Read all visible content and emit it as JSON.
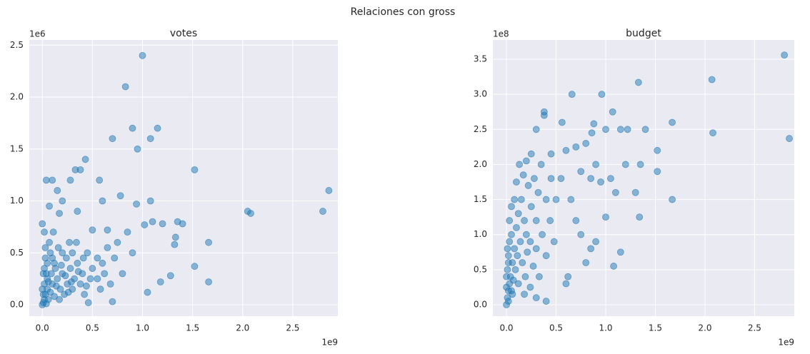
{
  "title": "Relaciones con gross",
  "chart_data": [
    {
      "type": "scatter",
      "title": "votes",
      "x_offset_label": "1e9",
      "y_offset_label": "1e6",
      "color": "#1f77b4",
      "grid": true,
      "xlim": [
        -0.13,
        2.95
      ],
      "ylim": [
        -0.11,
        2.55
      ],
      "xticks": [
        {
          "value": 0,
          "label": "0.0"
        },
        0.5,
        {
          "value": 1,
          "label": "1.0"
        },
        1.5,
        {
          "value": 2,
          "label": "2.0"
        },
        2.5
      ],
      "yticks": [
        {
          "value": 0,
          "label": "0.0"
        },
        0.5,
        {
          "value": 1,
          "label": "1.0"
        },
        1.5,
        {
          "value": 2,
          "label": "2.0"
        },
        2.5
      ],
      "x": [
        1.0,
        0.83,
        0.9,
        1.15,
        1.08,
        0.7,
        0.95,
        0.43,
        0.33,
        0.38,
        1.52,
        0.28,
        0.04,
        0.1,
        0.57,
        0.15,
        2.86,
        1.08,
        0.78,
        0.2,
        0.07,
        0.6,
        0.94,
        2.05,
        2.08,
        2.8,
        1.35,
        1.4,
        1.2,
        1.1,
        1.02,
        0.35,
        0.17,
        0.5,
        0.65,
        1.66,
        1.33,
        1.32,
        1.52,
        1.66,
        1.28,
        1.18,
        1.05,
        0.7,
        0.46,
        0.85,
        0.75,
        0.9,
        0.8,
        0.6,
        0.55,
        0.01,
        0.02,
        0.03,
        0.05,
        0.02,
        0.04,
        0.06,
        0.08,
        0.1,
        0.12,
        0.15,
        0.18,
        0.2,
        0.22,
        0.25,
        0.28,
        0.3,
        0.32,
        0.35,
        0.38,
        0.4,
        0.42,
        0.45,
        0.48,
        0.05,
        0.08,
        0.1,
        0.13,
        0.16,
        0.2,
        0.24,
        0.27,
        0.03,
        0.07,
        0.11,
        0.3,
        0.34,
        0.05,
        0.14,
        0.17,
        0.09,
        0.01,
        0.02,
        0.04,
        0.06,
        0.12,
        0.19,
        0.23,
        0.26,
        0.29,
        0.36,
        0.41,
        0.44,
        0.5,
        0.55,
        0.62,
        0.68,
        0.72,
        0.58,
        0.65,
        0.0,
        0.01,
        0.03,
        0.0,
        0.02,
        0.0
      ],
      "values": [
        2.4,
        2.1,
        1.7,
        1.7,
        1.6,
        1.6,
        1.5,
        1.4,
        1.3,
        1.3,
        1.3,
        1.2,
        1.2,
        1.2,
        1.2,
        1.1,
        1.1,
        1.0,
        1.05,
        1.0,
        0.95,
        1.0,
        0.97,
        0.9,
        0.88,
        0.9,
        0.8,
        0.78,
        0.78,
        0.8,
        0.77,
        0.9,
        0.88,
        0.72,
        0.72,
        0.6,
        0.65,
        0.58,
        0.37,
        0.22,
        0.28,
        0.22,
        0.12,
        0.03,
        0.02,
        0.7,
        0.6,
        0.5,
        0.3,
        0.4,
        0.25,
        0.02,
        0.05,
        0.1,
        0.15,
        0.2,
        0.3,
        0.05,
        0.12,
        0.2,
        0.08,
        0.25,
        0.15,
        0.3,
        0.1,
        0.2,
        0.35,
        0.15,
        0.25,
        0.4,
        0.2,
        0.3,
        0.1,
        0.5,
        0.25,
        0.4,
        0.5,
        0.45,
        0.35,
        0.55,
        0.5,
        0.45,
        0.6,
        0.55,
        0.6,
        0.7,
        0.5,
        0.6,
        0.25,
        0.18,
        0.05,
        0.3,
        0.1,
        0.35,
        0.01,
        0.22,
        0.4,
        0.38,
        0.28,
        0.12,
        0.22,
        0.32,
        0.45,
        0.18,
        0.35,
        0.45,
        0.3,
        0.2,
        0.45,
        0.15,
        0.55,
        0.0,
        0.3,
        0.45,
        0.15,
        0.7,
        0.78
      ]
    },
    {
      "type": "scatter",
      "title": "budget",
      "x_offset_label": "1e9",
      "y_offset_label": "1e8",
      "color": "#1f77b4",
      "grid": true,
      "xlim": [
        -0.137,
        2.9
      ],
      "ylim": [
        -0.163,
        3.775
      ],
      "xticks": [
        {
          "value": 0,
          "label": "0.0"
        },
        0.5,
        {
          "value": 1,
          "label": "1.0"
        },
        1.5,
        {
          "value": 2,
          "label": "2.0"
        },
        2.5
      ],
      "yticks": [
        {
          "value": 0,
          "label": "0.0"
        },
        0.5,
        {
          "value": 1,
          "label": "1.0"
        },
        1.5,
        {
          "value": 2,
          "label": "2.0"
        },
        2.5,
        {
          "value": 3,
          "label": "3.0"
        },
        3.5
      ],
      "x": [
        2.8,
        2.07,
        1.33,
        0.66,
        0.96,
        2.85,
        2.08,
        1.67,
        0.38,
        0.38,
        1.07,
        0.56,
        0.3,
        0.88,
        0.86,
        1.0,
        1.15,
        1.22,
        1.4,
        1.52,
        1.52,
        1.67,
        1.34,
        1.08,
        1.15,
        1.0,
        1.3,
        1.35,
        1.2,
        1.1,
        0.7,
        0.8,
        0.6,
        0.45,
        0.9,
        0.75,
        0.85,
        0.95,
        0.65,
        0.55,
        0.5,
        0.7,
        0.8,
        0.6,
        0.4,
        0.9,
        0.85,
        0.75,
        0.62,
        1.05,
        0.0,
        0.01,
        0.02,
        0.03,
        0.01,
        0.02,
        0.03,
        0.05,
        0.04,
        0.06,
        0.08,
        0.1,
        0.12,
        0.15,
        0.18,
        0.2,
        0.22,
        0.25,
        0.28,
        0.3,
        0.32,
        0.35,
        0.4,
        0.45,
        0.05,
        0.07,
        0.09,
        0.11,
        0.14,
        0.16,
        0.19,
        0.21,
        0.24,
        0.27,
        0.3,
        0.33,
        0.36,
        0.4,
        0.44,
        0.48,
        0.02,
        0.03,
        0.05,
        0.08,
        0.1,
        0.13,
        0.17,
        0.2,
        0.25,
        0.01,
        0.06,
        0.12,
        0.18,
        0.24,
        0.3,
        0.0,
        0.0,
        0.02
      ],
      "values": [
        3.56,
        3.21,
        3.17,
        3.0,
        3.0,
        2.37,
        2.45,
        2.6,
        2.75,
        2.7,
        2.75,
        2.6,
        2.5,
        2.58,
        2.45,
        2.5,
        2.5,
        2.5,
        2.5,
        2.2,
        1.9,
        1.5,
        1.25,
        0.55,
        0.75,
        1.25,
        1.6,
        2.0,
        2.0,
        1.6,
        2.25,
        2.3,
        2.2,
        2.15,
        2.0,
        1.9,
        1.8,
        1.75,
        1.5,
        1.8,
        1.5,
        1.2,
        0.6,
        0.3,
        0.05,
        0.9,
        0.8,
        1.0,
        0.4,
        1.8,
        0.0,
        0.1,
        0.2,
        0.3,
        0.5,
        0.7,
        0.9,
        1.0,
        0.4,
        0.6,
        0.8,
        1.1,
        1.3,
        1.5,
        1.2,
        1.0,
        1.7,
        1.4,
        1.8,
        1.2,
        1.6,
        2.0,
        1.5,
        1.8,
        0.2,
        0.35,
        0.5,
        0.7,
        0.9,
        0.6,
        0.4,
        0.75,
        0.9,
        0.55,
        0.8,
        0.4,
        1.0,
        0.7,
        1.2,
        0.9,
        0.05,
        1.2,
        1.4,
        1.5,
        1.75,
        2.0,
        1.85,
        2.05,
        2.15,
        0.8,
        0.15,
        0.3,
        0.15,
        0.25,
        0.1,
        0.4,
        0.25,
        0.6
      ]
    }
  ]
}
